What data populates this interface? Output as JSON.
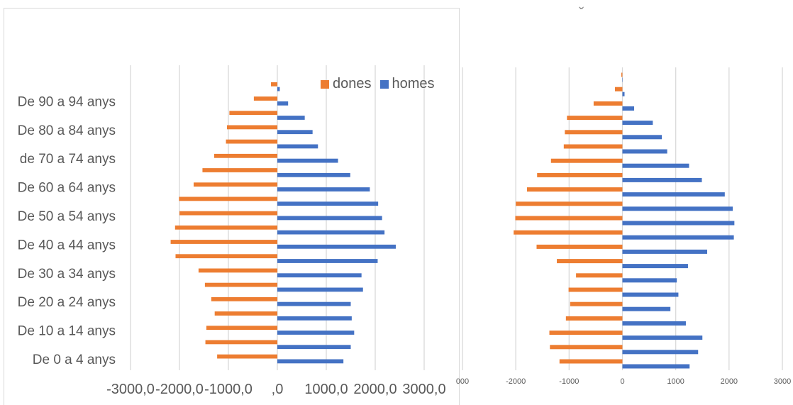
{
  "top_glyph": "ˇ",
  "chart_data": [
    {
      "type": "bar",
      "orientation": "horizontal",
      "title": "",
      "legend_position": "top-right",
      "categories": [
        "De 0 a 4 anys",
        "",
        "De 10 a 14 anys",
        "",
        "De 20 a 24 anys",
        "",
        "De 30 a 34 anys",
        "",
        "De 40 a 44 anys",
        "",
        "De 50 a 54 anys",
        "",
        "De 60 a 64 anys",
        "",
        "de 70 a 74 anys",
        "",
        "De 80 a 84 anys",
        "",
        "De 90 a 94 anys",
        ""
      ],
      "series": [
        {
          "name": "dones",
          "color": "#ed7d31",
          "values": [
            -1230,
            -1470,
            -1450,
            -1280,
            -1350,
            -1480,
            -1610,
            -2080,
            -2180,
            -2090,
            -2000,
            -2010,
            -1710,
            -1530,
            -1290,
            -1050,
            -1030,
            -980,
            -480,
            -130
          ]
        },
        {
          "name": "homes",
          "color": "#4472c4",
          "values": [
            1350,
            1500,
            1570,
            1520,
            1500,
            1750,
            1720,
            2050,
            2420,
            2190,
            2140,
            2060,
            1890,
            1490,
            1240,
            830,
            720,
            560,
            220,
            50
          ]
        }
      ],
      "xlim": [
        -3000,
        3000
      ],
      "x_ticks": [
        "-3000,0",
        "-2000,0",
        "-1000,0",
        ",0",
        "1000,0",
        "2000,0",
        "3000,0"
      ],
      "grid": true
    },
    {
      "type": "bar",
      "orientation": "horizontal",
      "title": "",
      "series": [
        {
          "name": "dones",
          "color": "#ed7d31",
          "values": [
            -1180,
            -1360,
            -1370,
            -1060,
            -980,
            -1010,
            -870,
            -1230,
            -1610,
            -2040,
            -2010,
            -2000,
            -1790,
            -1600,
            -1340,
            -1100,
            -1080,
            -1040,
            -540,
            -140,
            -20
          ]
        },
        {
          "name": "homes",
          "color": "#4472c4",
          "values": [
            1260,
            1420,
            1500,
            1190,
            900,
            1050,
            1020,
            1230,
            1590,
            2090,
            2100,
            2070,
            1920,
            1490,
            1250,
            840,
            740,
            570,
            220,
            40,
            0
          ]
        }
      ],
      "xlim": [
        -3000,
        3000
      ],
      "x_ticks": [
        "000",
        "-2000",
        "-1000",
        "0",
        "1000",
        "2000",
        "3000"
      ],
      "grid": true
    }
  ]
}
